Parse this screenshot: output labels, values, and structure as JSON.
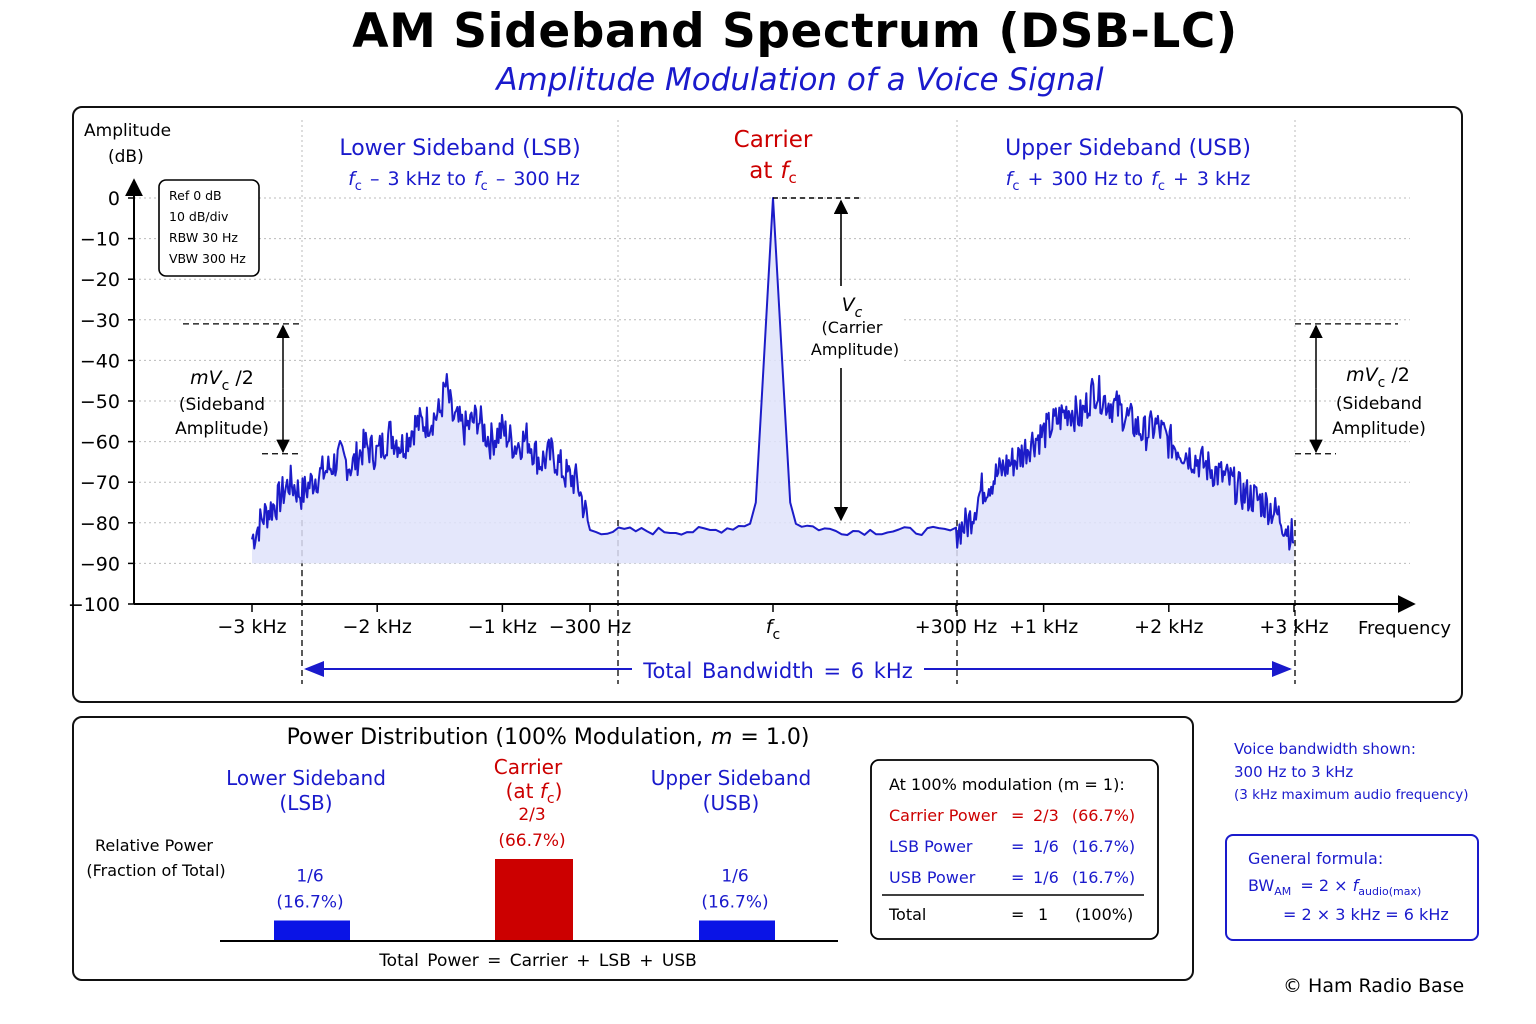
{
  "title": "AM Sideband Spectrum (DSB-LC)",
  "subtitle": "Amplitude Modulation of a Voice Signal",
  "chart_data": [
    {
      "type": "line",
      "ylabel_line1": "Amplitude",
      "ylabel_line2": "(dB)",
      "xlabel": "Frequency",
      "ylim": [
        -100,
        0
      ],
      "y_ticks": [
        "0",
        "−10",
        "−20",
        "−30",
        "−40",
        "−50",
        "−60",
        "−70",
        "−80",
        "−90",
        "−100"
      ],
      "y_tick_values": [
        0,
        -10,
        -20,
        -30,
        -40,
        -50,
        -60,
        -70,
        -80,
        -90,
        -100
      ],
      "x_ticks": [
        {
          "label": "−3 kHz",
          "khz": -3
        },
        {
          "label": "−2 kHz",
          "khz": -2
        },
        {
          "label": "−1 kHz",
          "khz": -1
        },
        {
          "label": "−300 Hz",
          "khz": -0.3
        },
        {
          "label": "f",
          "sub": "c",
          "khz": 0
        },
        {
          "label": "+300 Hz",
          "khz": 0.3
        },
        {
          "label": "+1 kHz",
          "khz": 1
        },
        {
          "label": "+2 kHz",
          "khz": 2
        },
        {
          "label": "+3 kHz",
          "khz": 3
        }
      ],
      "grid": true,
      "settings_box": [
        "Ref 0 dB",
        "10 dB/div",
        "RBW 30 Hz",
        "VBW 300 Hz"
      ],
      "spectrum_db": {
        "khz": [
          -3.0,
          -2.9,
          -2.8,
          -2.7,
          -2.6,
          -2.5,
          -2.4,
          -2.3,
          -2.2,
          -2.1,
          -2.0,
          -1.9,
          -1.8,
          -1.7,
          -1.6,
          -1.5,
          -1.45,
          -1.4,
          -1.3,
          -1.2,
          -1.1,
          -1.0,
          -0.9,
          -0.8,
          -0.7,
          -0.6,
          -0.5,
          -0.4,
          -0.3,
          -0.2,
          -0.1,
          -0.03,
          0.0,
          0.03,
          0.1,
          0.2,
          0.3,
          0.4,
          0.5,
          0.6,
          0.7,
          0.8,
          0.9,
          1.0,
          1.1,
          1.2,
          1.3,
          1.4,
          1.5,
          1.6,
          1.7,
          1.8,
          1.9,
          2.0,
          2.1,
          2.2,
          2.3,
          2.4,
          2.5,
          2.6,
          2.7,
          2.8,
          2.9,
          3.0
        ],
        "db": [
          -84,
          -78,
          -75,
          -70,
          -73,
          -69,
          -67,
          -64,
          -66,
          -61,
          -63,
          -58,
          -61,
          -56,
          -55,
          -53,
          -46,
          -54,
          -57,
          -54,
          -60,
          -57,
          -61,
          -59,
          -65,
          -63,
          -68,
          -70,
          -82,
          -82,
          -82,
          -80,
          0,
          -80,
          -82,
          -82,
          -82,
          -80,
          -72,
          -69,
          -66,
          -64,
          -60,
          -58,
          -55,
          -52,
          -54,
          -47,
          -50,
          -52,
          -55,
          -58,
          -56,
          -60,
          -62,
          -64,
          -66,
          -68,
          -70,
          -73,
          -74,
          -76,
          -79,
          -84
        ]
      },
      "annotations": {
        "lsb_title": "Lower Sideband (LSB)",
        "usb_title": "Upper Sideband (USB)",
        "carrier_title": "Carrier",
        "carrier_at": "at",
        "fc_symbol": "f",
        "fc_sub": "c",
        "lsb_range": [
          "–",
          "3 kHz to",
          "–",
          "300 Hz"
        ],
        "usb_range": [
          "+",
          "300 Hz to",
          "+",
          "3 kHz"
        ],
        "vc_symbol": "V",
        "vc_sub": "c",
        "vc_line1": "(Carrier",
        "vc_line2": "Amplitude)",
        "sideband_symbol_m": "mV",
        "sideband_symbol_sub": "c",
        "sideband_symbol_div": " /2",
        "sideband_line1": "(Sideband",
        "sideband_line2": "Amplitude)",
        "sideband_level_db": -31,
        "sideband_floor_db": -63,
        "bandwidth_label": "Total Bandwidth = 6 kHz"
      }
    },
    {
      "type": "bar",
      "title_prefix": "Power Distribution (100% Modulation,",
      "title_m": "m",
      "title_suffix": "= 1.0)",
      "ylabel_line1": "Relative Power",
      "ylabel_line2": "(Fraction of Total)",
      "categories": [
        "Lower Sideband (LSB)",
        "Carrier (at fc)",
        "Upper Sideband (USB)"
      ],
      "values": [
        0.1667,
        0.6667,
        0.1667
      ],
      "value_labels": [
        [
          "1/6",
          "(16.7%)"
        ],
        [
          "2/3",
          "(66.7%)"
        ],
        [
          "1/6",
          "(16.7%)"
        ]
      ],
      "category_lines": [
        [
          "Lower Sideband",
          "(LSB)"
        ],
        [
          "Carrier",
          "(at",
          ")"
        ],
        [
          "Upper Sideband",
          "(USB)"
        ]
      ],
      "colors": [
        "#0a14e6",
        "#cc0000",
        "#0a14e6"
      ],
      "xlabel": "Total Power = Carrier + LSB + USB"
    }
  ],
  "power_table": {
    "heading": "At 100% modulation (m = 1):",
    "rows": [
      {
        "name": "Carrier Power",
        "eq": "=",
        "value": "2/3 (66.7%)",
        "color": "#cc0000"
      },
      {
        "name": "LSB Power",
        "eq": "=",
        "value": "1/6 (16.7%)",
        "color": "#1a1acc"
      },
      {
        "name": "USB Power",
        "eq": "=",
        "value": "1/6 (16.7%)",
        "color": "#1a1acc"
      }
    ],
    "total": {
      "name": "Total",
      "eq": "=",
      "value": "1",
      "pct": "(100%)"
    }
  },
  "voice_note": [
    "Voice bandwidth shown:",
    "300 Hz to 3 kHz",
    "(3 kHz maximum audio frequency)"
  ],
  "formula": {
    "heading": "General formula:",
    "line1_lhs": "BW",
    "line1_lhs_sub": "AM",
    "line1_rhs": "= 2 ×",
    "line1_f": "f",
    "line1_f_sub": "audio(max)",
    "line2": "= 2 × 3 kHz = 6 kHz"
  },
  "copyright": "© Ham Radio Base",
  "colors": {
    "blue": "#1a1acc",
    "trace": "#1c1cc8",
    "red": "#cc0000",
    "fill": "#dfe3fa"
  }
}
